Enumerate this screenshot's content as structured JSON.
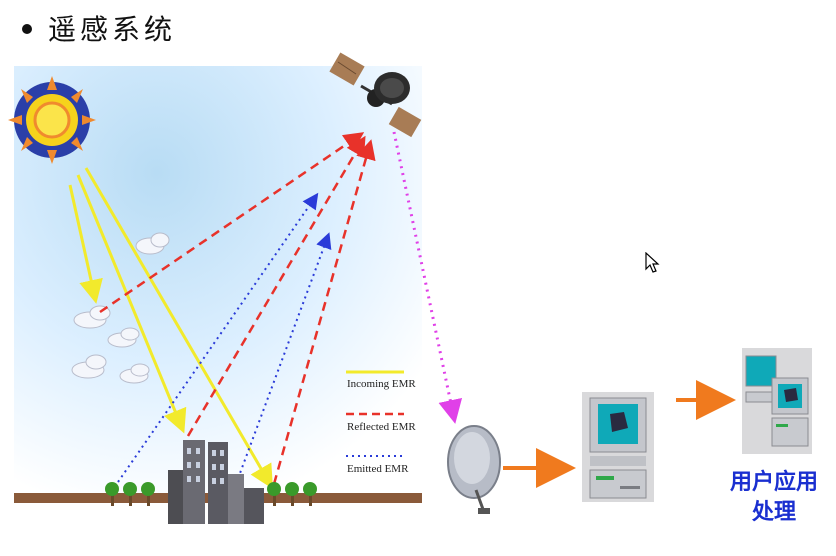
{
  "title": "遥感系统",
  "legend": {
    "incoming": "Incoming EMR",
    "reflected": "Reflected EMR",
    "emitted": "Emitted EMR"
  },
  "user_label": {
    "line1": "用户应用",
    "line2": "处理"
  },
  "colors": {
    "incoming": "#f2ea2c",
    "reflected": "#e8322a",
    "emitted": "#2a3bd8",
    "downlink": "#e040e8",
    "flow_arrow": "#f07a1e",
    "label": "#1a2fd0"
  }
}
